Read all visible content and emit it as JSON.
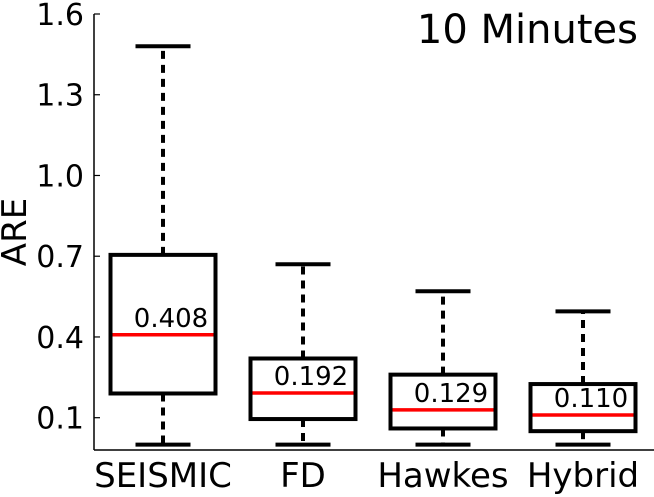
{
  "chart_data": {
    "type": "box",
    "title": "10 Minutes",
    "xlabel": "",
    "ylabel": "ARE",
    "ylim": [
      -0.02,
      1.6
    ],
    "yticks": [
      "0.1",
      "0.4",
      "0.7",
      "1.0",
      "1.3",
      "1.6"
    ],
    "ytick_values": [
      0.1,
      0.4,
      0.7,
      1.0,
      1.3,
      1.6
    ],
    "categories": [
      "SEISMIC",
      "FD",
      "Hawkes",
      "Hybrid"
    ],
    "boxes": [
      {
        "name": "SEISMIC",
        "whisker_low": 0.0,
        "q1": 0.19,
        "median": 0.408,
        "q3": 0.705,
        "whisker_high": 1.48,
        "median_label": "0.408"
      },
      {
        "name": "FD",
        "whisker_low": 0.0,
        "q1": 0.095,
        "median": 0.192,
        "q3": 0.32,
        "whisker_high": 0.67,
        "median_label": "0.192"
      },
      {
        "name": "Hawkes",
        "whisker_low": 0.0,
        "q1": 0.06,
        "median": 0.129,
        "q3": 0.26,
        "whisker_high": 0.57,
        "median_label": "0.129"
      },
      {
        "name": "Hybrid",
        "whisker_low": 0.0,
        "q1": 0.05,
        "median": 0.11,
        "q3": 0.225,
        "whisker_high": 0.495,
        "median_label": "0.110"
      }
    ],
    "grid": false,
    "colors": {
      "box": "#000000",
      "median": "#ff0000"
    }
  }
}
